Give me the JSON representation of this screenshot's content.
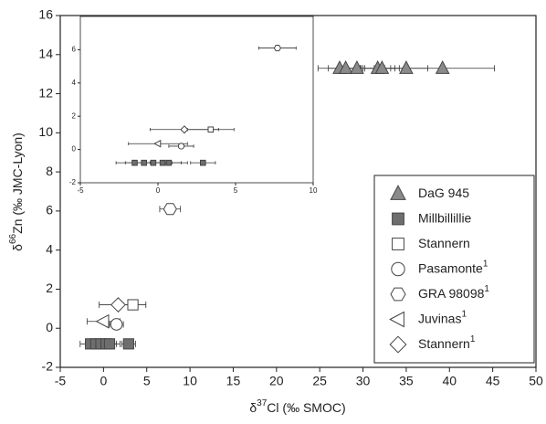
{
  "chart_data": {
    "type": "scatter",
    "x_label": [
      "δ",
      "37",
      "Cl (‰ SMOC)"
    ],
    "y_label": [
      "δ",
      "66",
      "Zn (‰ JMC-Lyon)"
    ],
    "xlim": [
      -5,
      50
    ],
    "xticks": [
      -5,
      0,
      5,
      10,
      15,
      20,
      25,
      30,
      35,
      40,
      45,
      50
    ],
    "ylim": [
      -2,
      16
    ],
    "yticks": [
      -2,
      0,
      2,
      4,
      6,
      8,
      10,
      12,
      14,
      16
    ],
    "legend": "lower right",
    "inset": {
      "xlim": [
        -5,
        10
      ],
      "xticks": [
        -5,
        0,
        5,
        10
      ],
      "ylim": [
        -2,
        8
      ],
      "yticks": [
        -2,
        0,
        2,
        4,
        6
      ]
    },
    "series": [
      {
        "name": "DaG 945",
        "marker": "triangle-up",
        "color": "#444",
        "fill": "#8a8a8a",
        "x": [
          27.3,
          28.0,
          29.3,
          31.7,
          32.2,
          35.0,
          39.2
        ],
        "y": [
          13.3,
          13.3,
          13.3,
          13.3,
          13.3,
          13.3,
          13.3
        ],
        "xerr": [
          2.5,
          2,
          2,
          2,
          2,
          2.5,
          6
        ]
      },
      {
        "name": "Millbillillie",
        "marker": "square",
        "color": "#444",
        "fill": "#6e6e6e",
        "x": [
          -1.5,
          -0.9,
          -0.3,
          0.3,
          0.7,
          2.9
        ],
        "y": [
          -0.8,
          -0.8,
          -0.8,
          -0.8,
          -0.8,
          -0.8
        ],
        "xerr": [
          1.2,
          1.2,
          1.2,
          1.2,
          1.2,
          0.8
        ]
      },
      {
        "name": "Stannern",
        "marker": "square",
        "color": "#444",
        "fill": "#ffffff",
        "x": [
          3.4
        ],
        "y": [
          1.2
        ],
        "xerr": [
          1.5
        ]
      },
      {
        "name": "Pasamonte",
        "superscript": "1",
        "marker": "circle",
        "color": "#444",
        "fill": "#ffffff",
        "x": [
          1.5
        ],
        "y": [
          0.2
        ],
        "xerr": [
          0.8
        ]
      },
      {
        "name": "GRA 98098",
        "superscript": "1",
        "marker": "hexagon",
        "color": "#444",
        "fill": "#ffffff",
        "x": [
          7.7
        ],
        "y": [
          6.1
        ],
        "xerr": [
          1.2
        ]
      },
      {
        "name": "Juvinas",
        "superscript": "1",
        "marker": "triangle-left",
        "color": "#444",
        "fill": "#ffffff",
        "x": [
          0.0
        ],
        "y": [
          0.35
        ],
        "xerr": [
          1.9
        ]
      },
      {
        "name": "Stannern",
        "superscript": "1",
        "marker": "diamond",
        "color": "#444",
        "fill": "#ffffff",
        "x": [
          1.7
        ],
        "y": [
          1.2
        ],
        "xerr": [
          2.2
        ]
      }
    ]
  }
}
